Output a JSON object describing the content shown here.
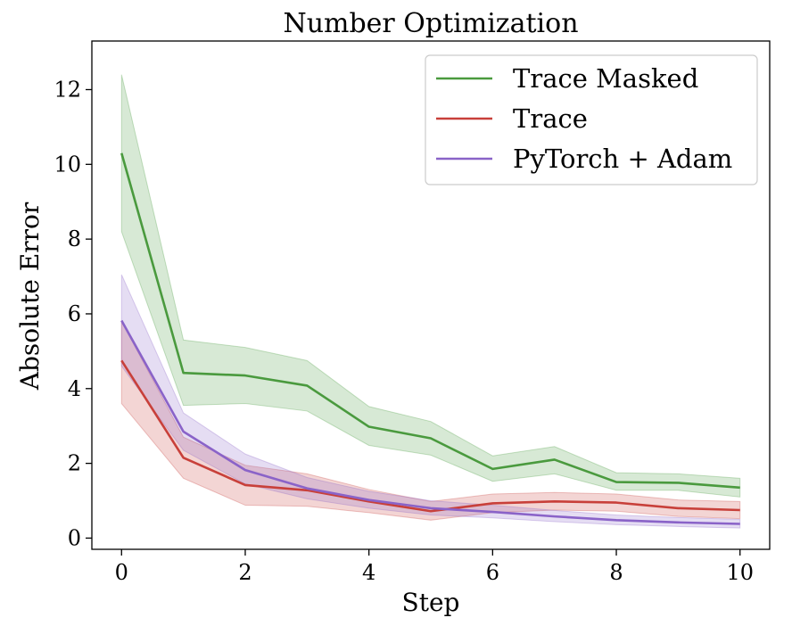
{
  "chart_data": {
    "type": "line",
    "title": "Number Optimization",
    "xlabel": "Step",
    "ylabel": "Absolute Error",
    "xlim": [
      -0.48,
      10.48
    ],
    "ylim": [
      -0.3,
      13.3
    ],
    "xticks": [
      0,
      2,
      4,
      6,
      8,
      10
    ],
    "yticks": [
      0,
      2,
      4,
      6,
      8,
      10,
      12
    ],
    "grid": false,
    "legend_position": "top-right",
    "x": [
      0,
      1,
      2,
      3,
      4,
      5,
      6,
      7,
      8,
      9,
      10
    ],
    "series": [
      {
        "name": "Trace Masked",
        "color": "#4a9a3e",
        "values": [
          10.3,
          4.42,
          4.35,
          4.08,
          2.98,
          2.67,
          1.85,
          2.1,
          1.5,
          1.48,
          1.35
        ],
        "lower": [
          8.2,
          3.55,
          3.6,
          3.4,
          2.48,
          2.22,
          1.52,
          1.72,
          1.28,
          1.28,
          1.1
        ],
        "upper": [
          12.4,
          5.3,
          5.1,
          4.75,
          3.52,
          3.12,
          2.2,
          2.45,
          1.75,
          1.72,
          1.6
        ]
      },
      {
        "name": "Trace",
        "color": "#c8403a",
        "values": [
          4.75,
          2.15,
          1.42,
          1.28,
          0.98,
          0.72,
          0.93,
          0.98,
          0.95,
          0.8,
          0.75
        ],
        "lower": [
          3.6,
          1.6,
          0.88,
          0.85,
          0.68,
          0.48,
          0.68,
          0.75,
          0.72,
          0.58,
          0.52
        ],
        "upper": [
          5.8,
          2.7,
          1.95,
          1.72,
          1.3,
          0.98,
          1.18,
          1.22,
          1.18,
          1.02,
          0.98
        ]
      },
      {
        "name": "PyTorch + Adam",
        "color": "#8a63c8",
        "values": [
          5.82,
          2.85,
          1.82,
          1.33,
          1.02,
          0.8,
          0.7,
          0.58,
          0.48,
          0.42,
          0.38
        ],
        "lower": [
          4.6,
          2.35,
          1.45,
          1.05,
          0.8,
          0.62,
          0.54,
          0.44,
          0.36,
          0.31,
          0.27
        ],
        "upper": [
          7.05,
          3.35,
          2.25,
          1.62,
          1.25,
          1.0,
          0.88,
          0.74,
          0.62,
          0.55,
          0.5
        ]
      }
    ]
  }
}
